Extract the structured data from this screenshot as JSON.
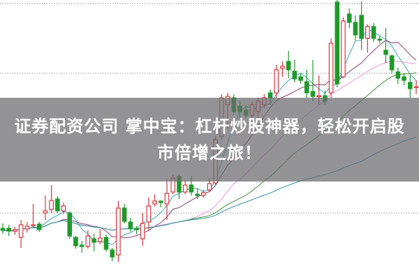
{
  "overlay": {
    "title_line1": "证券配资公司 掌中宝：杠杆炒股神器，轻松开启股",
    "title_line2": "市倍增之旅！"
  },
  "chart_data": {
    "type": "candlestick",
    "title": "",
    "xlabel": "",
    "ylabel": "",
    "ylim": [
      0,
      40
    ],
    "grid": true,
    "gridlines": [
      39.5,
      29.5,
      9.5
    ],
    "up_color": "#d9343a",
    "down_color": "#1f9a2a",
    "up_style": "hollow",
    "down_style": "filled",
    "moving_averages": [
      {
        "period": 5,
        "color": "#3ba7b8"
      },
      {
        "period": 10,
        "color": "#8a3f78"
      },
      {
        "period": 20,
        "color": "#ee95e6"
      },
      {
        "period": 30,
        "color": "#3f8f3a"
      },
      {
        "period": 60,
        "color": "#2f93a6"
      }
    ],
    "ohlc": [
      [
        7.3,
        8.0,
        6.5,
        7.0
      ],
      [
        7.3,
        7.8,
        6.2,
        6.9
      ],
      [
        6.9,
        7.5,
        6.4,
        7.1
      ],
      [
        6.0,
        8.5,
        4.5,
        7.8
      ],
      [
        7.2,
        8.2,
        6.7,
        7.6
      ],
      [
        7.7,
        10.8,
        7.5,
        7.8
      ],
      [
        7.9,
        8.2,
        6.8,
        7.1
      ],
      [
        9.5,
        12.0,
        8.5,
        9.8
      ],
      [
        10.0,
        13.5,
        9.5,
        11.3
      ],
      [
        11.5,
        11.9,
        9.5,
        9.8
      ],
      [
        9.8,
        11.0,
        9.4,
        10.5
      ],
      [
        9.5,
        9.7,
        5.8,
        6.2
      ],
      [
        6.0,
        6.2,
        4.4,
        4.8
      ],
      [
        4.9,
        5.5,
        3.8,
        4.7
      ],
      [
        4.7,
        7.0,
        4.4,
        6.2
      ],
      [
        5.8,
        6.5,
        4.0,
        5.3
      ],
      [
        5.4,
        7.2,
        5.0,
        5.9
      ],
      [
        6.0,
        6.4,
        4.0,
        4.3
      ],
      [
        4.2,
        4.5,
        2.6,
        3.2
      ],
      [
        3.5,
        11.2,
        2.5,
        10.2
      ],
      [
        10.2,
        10.8,
        8.0,
        8.3
      ],
      [
        8.2,
        8.8,
        6.8,
        7.3
      ],
      [
        7.3,
        7.6,
        6.5,
        7.1
      ],
      [
        5.8,
        9.5,
        4.8,
        8.0
      ],
      [
        8.2,
        11.7,
        7.0,
        10.5
      ],
      [
        10.8,
        12.2,
        10.4,
        11.2
      ],
      [
        11.2,
        11.3,
        10.3,
        11.0
      ],
      [
        10.8,
        14.3,
        8.5,
        12.3
      ],
      [
        12.5,
        15.0,
        12.2,
        14.5
      ],
      [
        14.7,
        15.0,
        11.5,
        12.5
      ],
      [
        12.5,
        14.2,
        12.2,
        13.5
      ],
      [
        13.5,
        14.8,
        12.0,
        12.5
      ],
      [
        12.2,
        13.0,
        11.5,
        12.0
      ],
      [
        12.0,
        12.8,
        11.7,
        12.4
      ],
      [
        12.8,
        14.5,
        12.5,
        13.7
      ],
      [
        13.8,
        20.5,
        13.5,
        20.0
      ],
      [
        20.5,
        26.5,
        20.0,
        26.0
      ],
      [
        25.0,
        26.7,
        21.5,
        26.2
      ],
      [
        26.0,
        26.5,
        23.5,
        24.0
      ],
      [
        24.8,
        25.5,
        23.2,
        24.0
      ],
      [
        24.2,
        25.0,
        23.0,
        23.5
      ],
      [
        23.5,
        25.5,
        22.5,
        25.0
      ],
      [
        24.0,
        26.0,
        23.0,
        25.5
      ],
      [
        25.0,
        26.5,
        24.5,
        26.0
      ],
      [
        26.7,
        27.2,
        25.0,
        26.0
      ],
      [
        26.7,
        30.7,
        26.0,
        30.0
      ],
      [
        30.2,
        31.2,
        29.0,
        30.5
      ],
      [
        31.2,
        32.7,
        28.8,
        30.0
      ],
      [
        29.8,
        31.5,
        28.2,
        28.7
      ],
      [
        29.0,
        29.5,
        28.0,
        28.5
      ],
      [
        28.3,
        30.0,
        26.0,
        26.7
      ],
      [
        26.9,
        31.4,
        25.5,
        26.2
      ],
      [
        26.2,
        29.2,
        25.0,
        26.3
      ],
      [
        26.3,
        27.0,
        25.0,
        25.5
      ],
      [
        26.7,
        34.5,
        26.0,
        33.8
      ],
      [
        39.7,
        40.0,
        27.5,
        28.0
      ],
      [
        29.0,
        37.5,
        28.8,
        37.0
      ],
      [
        38.0,
        38.8,
        36.0,
        36.8
      ],
      [
        36.8,
        37.8,
        34.2,
        35.0
      ],
      [
        37.8,
        39.8,
        32.8,
        34.5
      ],
      [
        34.5,
        36.5,
        32.5,
        36.2
      ],
      [
        36.2,
        36.7,
        34.0,
        34.5
      ],
      [
        34.4,
        34.8,
        33.8,
        34.3
      ],
      [
        32.8,
        36.0,
        31.0,
        32.2
      ],
      [
        32.0,
        32.2,
        29.5,
        30.0
      ],
      [
        29.7,
        30.3,
        28.0,
        28.8
      ],
      [
        29.0,
        29.5,
        27.8,
        28.5
      ],
      [
        28.2,
        29.2,
        26.0,
        27.3
      ],
      [
        27.5,
        28.5,
        26.5,
        27.6
      ]
    ]
  }
}
